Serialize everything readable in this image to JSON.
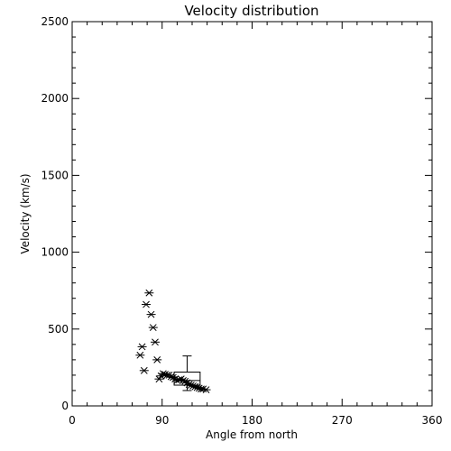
{
  "chart_data": {
    "type": "scatter",
    "title": "Velocity distribution",
    "xlabel": "Angle from north",
    "ylabel": "Velocity (km/s)",
    "xlim": [
      0,
      360
    ],
    "ylim": [
      0,
      2500
    ],
    "xticks": [
      0,
      90,
      180,
      270,
      360
    ],
    "yticks": [
      0,
      500,
      1000,
      1500,
      2000,
      2500
    ],
    "xtick_labels": [
      "0",
      "90",
      "180",
      "270",
      "360"
    ],
    "ytick_labels": [
      "0",
      "500",
      "1000",
      "1500",
      "2000",
      "2500"
    ],
    "grid": false,
    "legend": "none",
    "marker": "asterisk",
    "points": [
      {
        "x": 68,
        "y": 330
      },
      {
        "x": 70,
        "y": 385
      },
      {
        "x": 72,
        "y": 230
      },
      {
        "x": 74,
        "y": 660
      },
      {
        "x": 77,
        "y": 735
      },
      {
        "x": 79,
        "y": 595
      },
      {
        "x": 81,
        "y": 510
      },
      {
        "x": 83,
        "y": 415
      },
      {
        "x": 85,
        "y": 300
      },
      {
        "x": 87,
        "y": 175
      },
      {
        "x": 89,
        "y": 195
      },
      {
        "x": 91,
        "y": 210
      },
      {
        "x": 93,
        "y": 205
      },
      {
        "x": 95,
        "y": 200
      },
      {
        "x": 97,
        "y": 200
      },
      {
        "x": 99,
        "y": 190
      },
      {
        "x": 101,
        "y": 185
      },
      {
        "x": 103,
        "y": 175
      },
      {
        "x": 105,
        "y": 165
      },
      {
        "x": 107,
        "y": 170
      },
      {
        "x": 109,
        "y": 175
      },
      {
        "x": 111,
        "y": 165
      },
      {
        "x": 113,
        "y": 160
      },
      {
        "x": 115,
        "y": 150
      },
      {
        "x": 117,
        "y": 140
      },
      {
        "x": 119,
        "y": 135
      },
      {
        "x": 121,
        "y": 130
      },
      {
        "x": 123,
        "y": 125
      },
      {
        "x": 125,
        "y": 120
      },
      {
        "x": 127,
        "y": 115
      },
      {
        "x": 129,
        "y": 110
      },
      {
        "x": 131,
        "y": 110
      },
      {
        "x": 134,
        "y": 105
      }
    ],
    "box": {
      "x_center": 115,
      "x_half_width": 13,
      "lower_whisker": 100,
      "q1": 135,
      "median": 165,
      "q3": 220,
      "upper_whisker": 325
    }
  }
}
